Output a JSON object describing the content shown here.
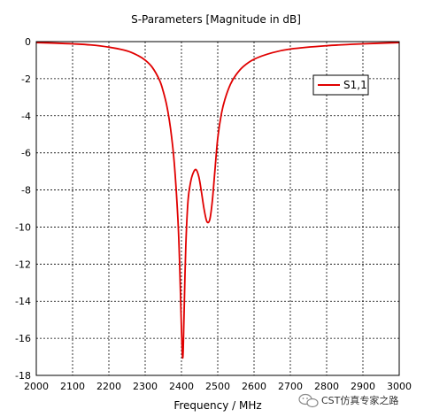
{
  "chart_data": {
    "type": "line",
    "title": "S-Parameters [Magnitude in dB]",
    "xlabel": "Frequency / MHz",
    "ylabel": "",
    "xlim": [
      2000,
      3000
    ],
    "ylim": [
      -18,
      0
    ],
    "x_ticks": [
      2000,
      2100,
      2200,
      2300,
      2400,
      2500,
      2600,
      2700,
      2800,
      2900,
      3000
    ],
    "y_ticks": [
      0,
      -2,
      -4,
      -6,
      -8,
      -10,
      -12,
      -14,
      -16,
      -18
    ],
    "grid": true,
    "legend_position": "top-right",
    "series": [
      {
        "name": "S1,1",
        "color": "#e00000",
        "x": [
          2000,
          2050,
          2100,
          2150,
          2200,
          2250,
          2280,
          2300,
          2320,
          2340,
          2350,
          2360,
          2370,
          2380,
          2390,
          2395,
          2400,
          2403,
          2405,
          2408,
          2412,
          2418,
          2425,
          2432,
          2440,
          2448,
          2455,
          2462,
          2470,
          2478,
          2485,
          2492,
          2500,
          2510,
          2520,
          2535,
          2550,
          2570,
          2600,
          2650,
          2700,
          2800,
          2900,
          3000
        ],
        "y": [
          -0.05,
          -0.08,
          -0.12,
          -0.18,
          -0.3,
          -0.5,
          -0.75,
          -1.0,
          -1.4,
          -2.1,
          -2.7,
          -3.5,
          -4.7,
          -6.5,
          -9.5,
          -12.0,
          -15.5,
          -17.0,
          -16.5,
          -14.0,
          -11.0,
          -8.6,
          -7.6,
          -7.1,
          -6.9,
          -7.3,
          -8.1,
          -9.0,
          -9.7,
          -9.6,
          -8.6,
          -7.0,
          -5.2,
          -3.9,
          -3.1,
          -2.3,
          -1.8,
          -1.35,
          -0.95,
          -0.6,
          -0.4,
          -0.22,
          -0.12,
          -0.05
        ]
      }
    ]
  },
  "watermark": {
    "text": "CST仿真专家之路",
    "icon": "wechat-icon"
  }
}
